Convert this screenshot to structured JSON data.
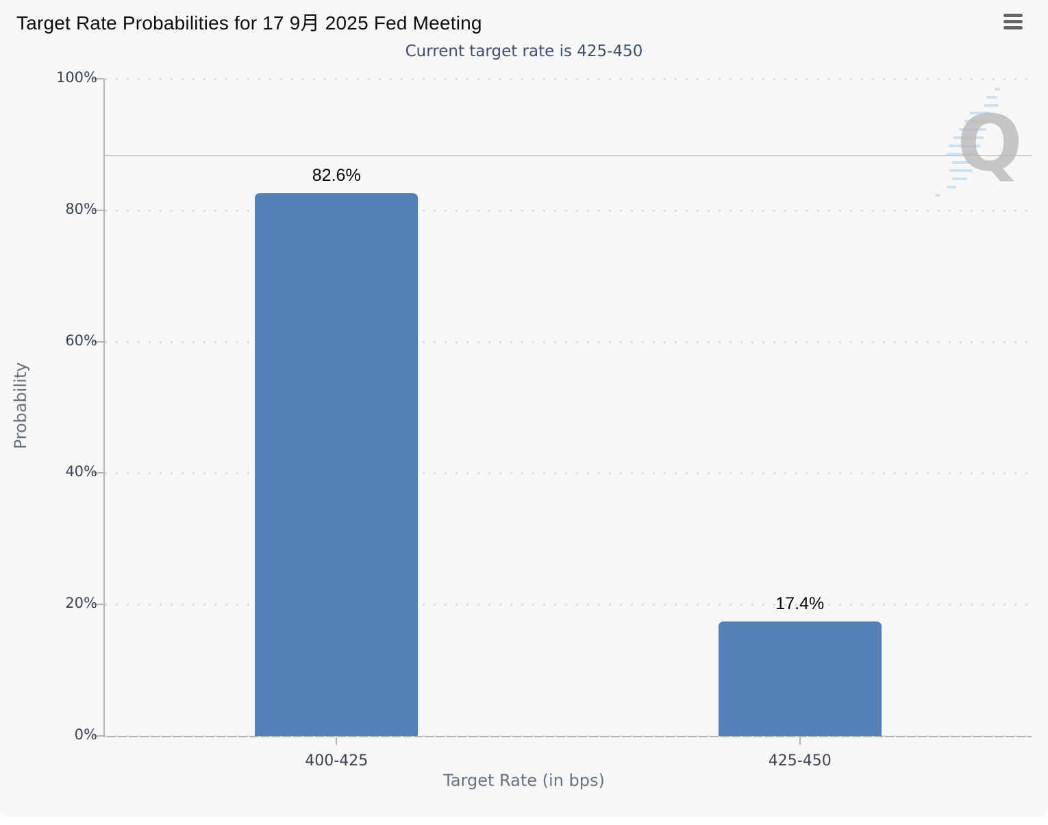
{
  "header": {
    "title": "Target Rate Probabilities for 17 9月 2025 Fed Meeting",
    "subtitle": "Current target rate is 425-450",
    "menu_icon": "hamburger-menu-icon"
  },
  "watermark": {
    "letter": "Q"
  },
  "chart_data": {
    "type": "bar",
    "title": "Target Rate Probabilities for 17 9月 2025 Fed Meeting",
    "subtitle": "Current target rate is 425-450",
    "xlabel": "Target Rate (in bps)",
    "ylabel": "Probability",
    "categories": [
      "400-425",
      "425-450"
    ],
    "values": [
      82.6,
      17.4
    ],
    "bar_labels": [
      "82.6%",
      "17.4%"
    ],
    "ylim": [
      0,
      100
    ],
    "y_ticks": [
      {
        "label": "0%",
        "value": 0
      },
      {
        "label": "20%",
        "value": 20
      },
      {
        "label": "40%",
        "value": 40
      },
      {
        "label": "60%",
        "value": 60
      },
      {
        "label": "80%",
        "value": 80
      },
      {
        "label": "100%",
        "value": 100
      }
    ],
    "reference_line_value": 88.3,
    "grid": "horizontal-dotted",
    "legend": "none",
    "colors": {
      "bar": "#5381b6",
      "background": "#f7f7f7",
      "subtitle_text": "#3d4e6e",
      "axis_line": "#b3b3b3",
      "grid_dots": "#dcdcdc",
      "reference_line": "#cdcdcd",
      "axis_title_text": "#68727e",
      "tick_label_text": "#3b4252"
    }
  }
}
